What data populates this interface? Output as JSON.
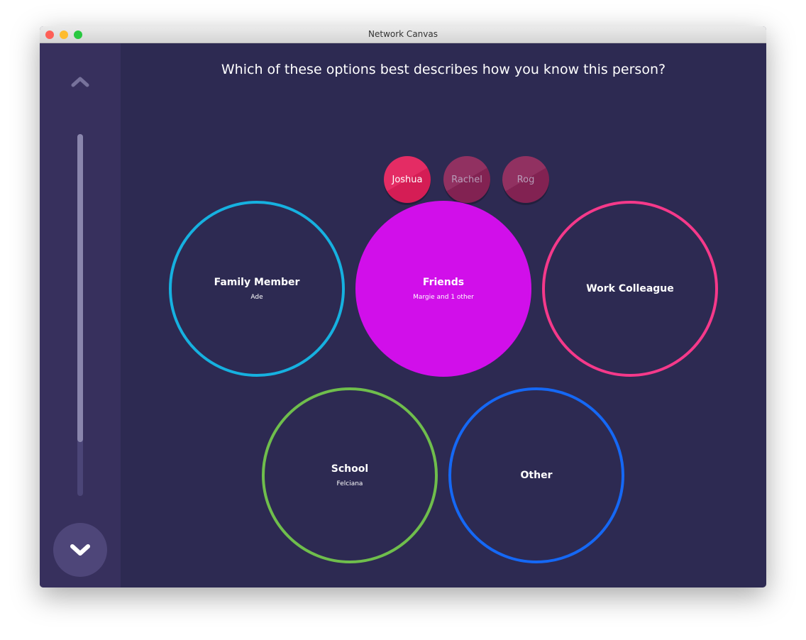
{
  "window": {
    "title": "Network Canvas"
  },
  "prompt": "Which of these options best describes how you know this person?",
  "progress": 0.85,
  "nodes": [
    {
      "label": "Joshua",
      "active": true,
      "color": "#e21f5a"
    },
    {
      "label": "Rachel",
      "active": false,
      "color": "#8a2457"
    },
    {
      "label": "Rog",
      "active": false,
      "color": "#8a2457"
    }
  ],
  "categories": [
    {
      "label": "Family Member",
      "sub": "Ade",
      "color": "#16b1e0",
      "selected": false
    },
    {
      "label": "Friends",
      "sub": "Margie and 1 other",
      "color": "#d10fea",
      "selected": true
    },
    {
      "label": "Work Colleague",
      "sub": "",
      "color": "#f5398a",
      "selected": false
    },
    {
      "label": "School",
      "sub": "Felciana",
      "color": "#6fbe4c",
      "selected": false
    },
    {
      "label": "Other",
      "sub": "",
      "color": "#1568f5",
      "selected": false
    }
  ]
}
